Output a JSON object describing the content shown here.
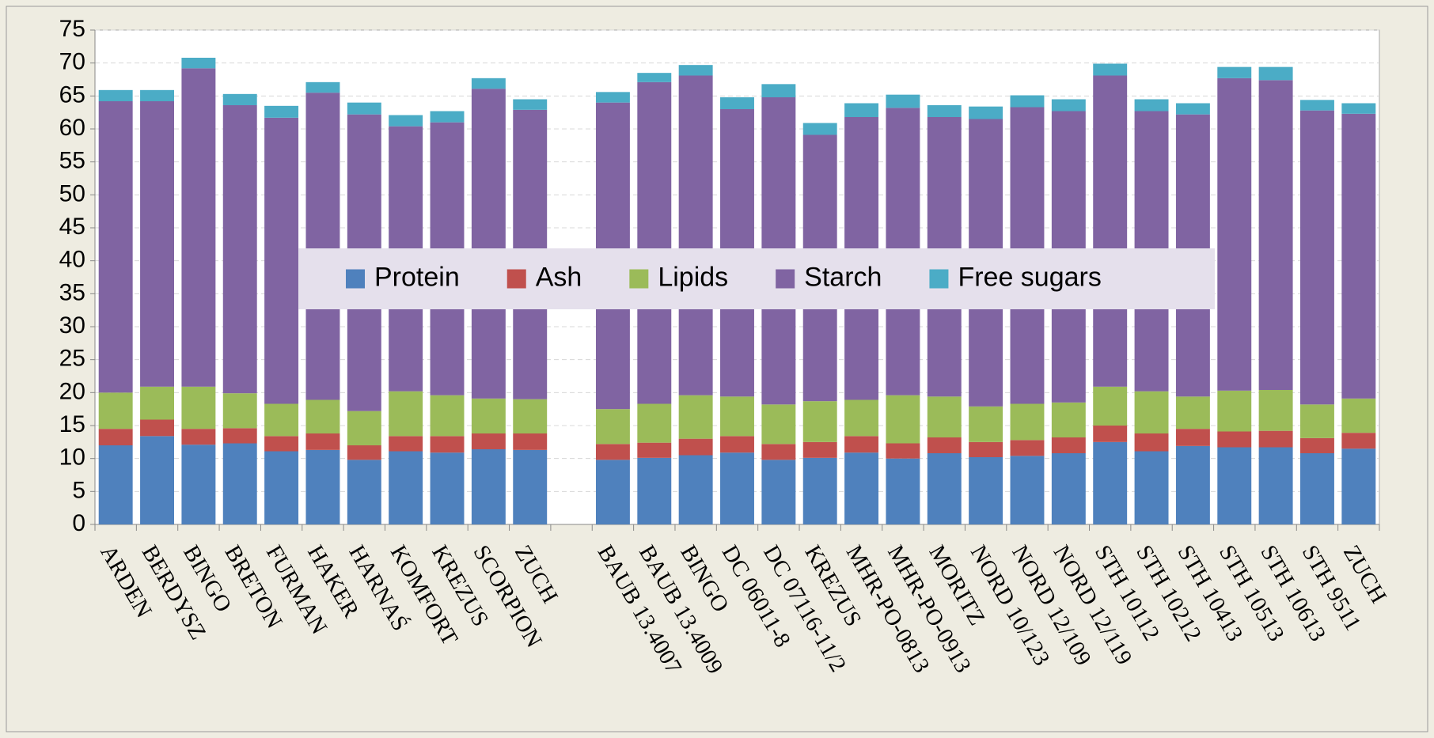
{
  "chart_data": {
    "type": "stacked_bar",
    "categories": [
      "ARDEN",
      "BERDYSZ",
      "BINGO",
      "BRETON",
      "FURMAN",
      "HAKER",
      "HARNAŚ",
      "KOMFORT",
      "KREZUS",
      "SCORPION",
      "ZUCH",
      null,
      "BAUB 13.4007",
      "BAUB 13.4009",
      "BINGO",
      "DC 06011-8",
      "DC 07116-11/2",
      "KREZUS",
      "MHR-PO-0813",
      "MHR-PO-0913",
      "MORITZ",
      "NORD 10/123",
      "NORD 12/109",
      "NORD 12/119",
      "STH 10112",
      "STH 10212",
      "STH 10413",
      "STH 10513",
      "STH 10613",
      "STH 9511",
      "ZUCH"
    ],
    "series": [
      {
        "name": "Protein",
        "color": "#4f81bd",
        "values": [
          12,
          13.4,
          12.1,
          12.3,
          11.1,
          11.3,
          9.8,
          11.1,
          10.9,
          11.4,
          11.3,
          null,
          9.8,
          10.1,
          10.5,
          10.9,
          9.8,
          10.1,
          10.9,
          10,
          10.8,
          10.2,
          10.4,
          10.8,
          12.5,
          11.1,
          11.9,
          11.7,
          11.7,
          10.8,
          11.5
        ]
      },
      {
        "name": "Ash",
        "color": "#c0504d",
        "values": [
          2.5,
          2.5,
          2.4,
          2.3,
          2.3,
          2.5,
          2.2,
          2.3,
          2.5,
          2.4,
          2.5,
          null,
          2.4,
          2.3,
          2.5,
          2.5,
          2.4,
          2.4,
          2.5,
          2.3,
          2.4,
          2.3,
          2.4,
          2.4,
          2.5,
          2.7,
          2.6,
          2.4,
          2.5,
          2.3,
          2.4
        ]
      },
      {
        "name": "Lipids",
        "color": "#9bbb59",
        "values": [
          5.5,
          5,
          6.4,
          5.3,
          4.9,
          5.1,
          5.2,
          6.8,
          6.2,
          5.3,
          5.2,
          null,
          5.3,
          5.9,
          6.6,
          6,
          6,
          6.2,
          5.5,
          7.3,
          6.2,
          5.4,
          5.5,
          5.3,
          5.9,
          6.4,
          4.9,
          6.2,
          6.2,
          5.1,
          5.2
        ]
      },
      {
        "name": "Starch",
        "color": "#8064a2",
        "values": [
          44.2,
          43.3,
          48.3,
          43.7,
          43.4,
          46.6,
          45,
          40.2,
          41.4,
          47,
          43.9,
          null,
          46.5,
          48.8,
          48.5,
          43.6,
          46.6,
          40.4,
          42.9,
          43.6,
          42.4,
          43.6,
          45,
          44.2,
          47.2,
          42.5,
          42.8,
          47.4,
          47,
          44.6,
          43.2
        ]
      },
      {
        "name": "Free sugars",
        "color": "#4bacc6",
        "values": [
          1.7,
          1.7,
          1.6,
          1.7,
          1.8,
          1.6,
          1.8,
          1.7,
          1.7,
          1.6,
          1.6,
          null,
          1.6,
          1.4,
          1.6,
          1.8,
          2,
          1.8,
          2.1,
          2,
          1.8,
          1.9,
          1.8,
          1.8,
          1.8,
          1.8,
          1.7,
          1.7,
          2,
          1.6,
          1.6
        ]
      }
    ],
    "ylim": [
      0,
      75
    ],
    "yticks": [
      0,
      5,
      10,
      15,
      20,
      25,
      30,
      35,
      40,
      45,
      50,
      55,
      60,
      65,
      70,
      75
    ],
    "grid": true,
    "legend": "center"
  }
}
